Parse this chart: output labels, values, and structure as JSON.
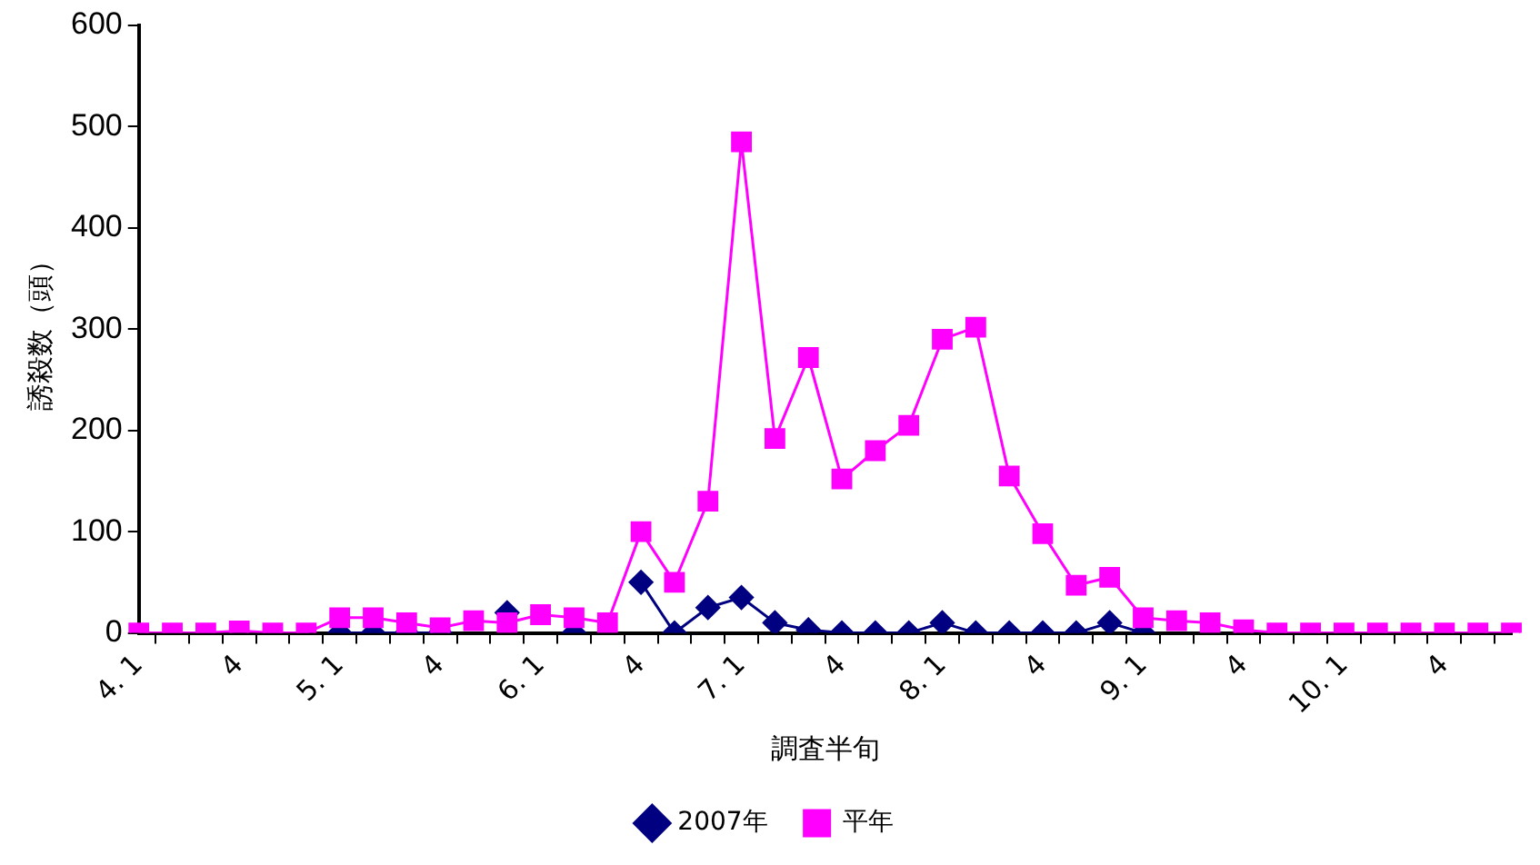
{
  "chart_data": {
    "type": "line",
    "xlabel": "調査半旬",
    "ylabel": "誘殺数（頭）",
    "categories": [
      "4. 1",
      null,
      null,
      "4",
      null,
      null,
      "5. 1",
      null,
      null,
      "4",
      null,
      null,
      "6. 1",
      null,
      null,
      "4",
      null,
      null,
      "7. 1",
      null,
      null,
      "4",
      null,
      null,
      "8. 1",
      null,
      null,
      "4",
      null,
      null,
      "9. 1",
      null,
      null,
      "4",
      null,
      null,
      "10. 1",
      null,
      null,
      "4",
      null,
      null
    ],
    "series": [
      {
        "name": "2007年",
        "color": "#000080",
        "marker": "diamond",
        "values": [
          null,
          null,
          null,
          null,
          null,
          null,
          0,
          0,
          0,
          0,
          null,
          20,
          null,
          0,
          null,
          50,
          0,
          25,
          35,
          10,
          3,
          0,
          0,
          0,
          10,
          0,
          0,
          0,
          0,
          10,
          0,
          null,
          null,
          null,
          null,
          null,
          null,
          null,
          null,
          null,
          null,
          null
        ]
      },
      {
        "name": "平年",
        "color": "#ff00ff",
        "marker": "square",
        "values": [
          0,
          0,
          0,
          2,
          0,
          0,
          15,
          15,
          10,
          5,
          12,
          10,
          18,
          15,
          10,
          100,
          50,
          130,
          485,
          192,
          272,
          152,
          180,
          205,
          290,
          302,
          155,
          98,
          47,
          55,
          15,
          12,
          10,
          3,
          0,
          0,
          0,
          0,
          0,
          0,
          0,
          0
        ]
      }
    ],
    "ylim": [
      0,
      600
    ],
    "yticks": [
      0,
      100,
      200,
      300,
      400,
      500,
      600
    ],
    "grid": false,
    "legend": "bottom"
  }
}
